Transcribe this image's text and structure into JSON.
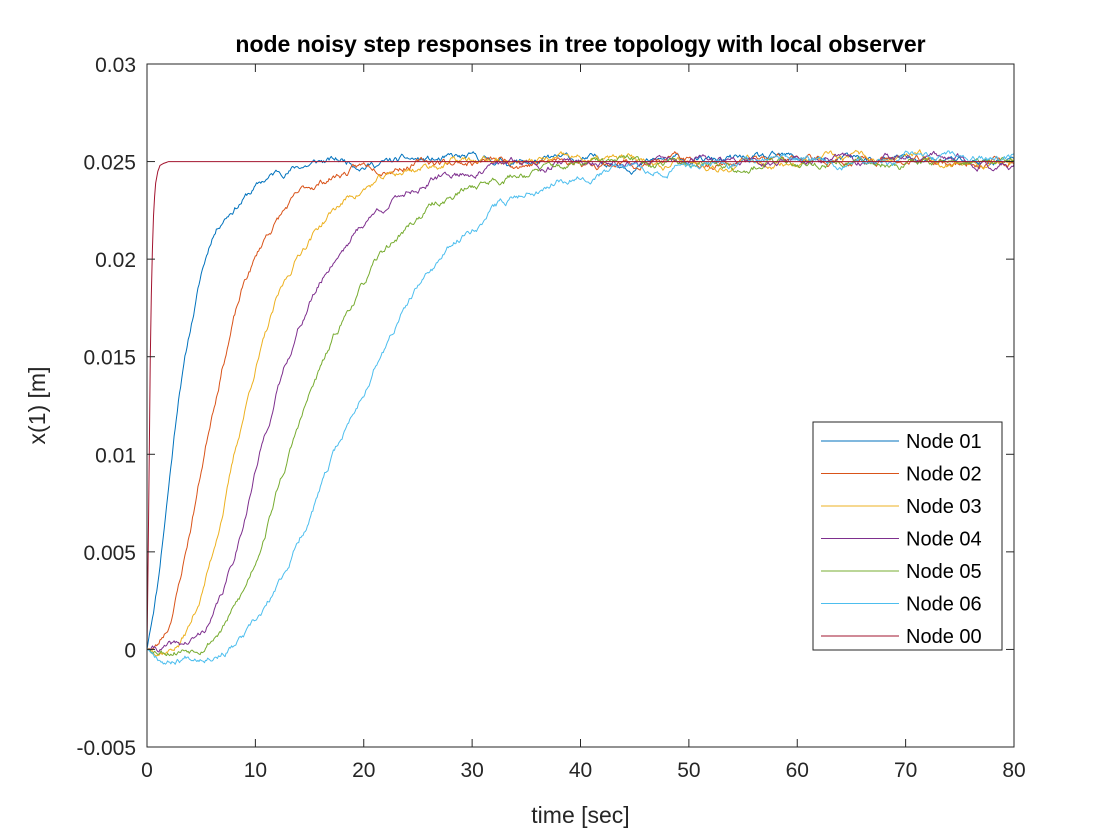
{
  "chart_data": {
    "type": "line",
    "title": "node noisy step responses in tree topology with local observer",
    "xlabel": "time [sec]",
    "ylabel": "x(1) [m]",
    "xlim": [
      0,
      80
    ],
    "ylim": [
      -0.005,
      0.03
    ],
    "xticks": [
      0,
      10,
      20,
      30,
      40,
      50,
      60,
      70,
      80
    ],
    "xtick_labels": [
      "0",
      "10",
      "20",
      "30",
      "40",
      "50",
      "60",
      "70",
      "80"
    ],
    "yticks": [
      -0.005,
      0,
      0.005,
      0.01,
      0.015,
      0.02,
      0.025,
      0.03
    ],
    "ytick_labels": [
      "-0.005",
      "0",
      "0.005",
      "0.01",
      "0.015",
      "0.02",
      "0.025",
      "0.03"
    ],
    "grid": false,
    "legend_position": "right",
    "series": [
      {
        "name": "Node 01",
        "color": "#0072BD",
        "noise": 0.00036,
        "seed": 11,
        "x": [
          0,
          1,
          2,
          3,
          4,
          5,
          6,
          7,
          8,
          9,
          10,
          11,
          12,
          13,
          14,
          16,
          18,
          20,
          22,
          25,
          30,
          40,
          50,
          60,
          70,
          80
        ],
        "y": [
          0,
          0.0035,
          0.0085,
          0.0135,
          0.0165,
          0.0192,
          0.0212,
          0.0222,
          0.0228,
          0.0233,
          0.0237,
          0.0241,
          0.0244,
          0.0246,
          0.0248,
          0.025,
          0.025,
          0.025,
          0.025,
          0.025,
          0.025,
          0.025,
          0.025,
          0.025,
          0.025,
          0.025
        ]
      },
      {
        "name": "Node 02",
        "color": "#D95319",
        "noise": 0.00036,
        "seed": 23,
        "x": [
          0,
          1,
          2,
          3,
          4,
          5,
          6,
          7,
          8,
          9,
          10,
          11,
          12,
          13,
          14,
          15,
          16,
          17,
          18,
          20,
          22,
          24,
          27,
          30,
          40,
          50,
          60,
          70,
          80
        ],
        "y": [
          0,
          0.0002,
          0.0012,
          0.0035,
          0.0062,
          0.0092,
          0.0122,
          0.0148,
          0.017,
          0.0188,
          0.02,
          0.0212,
          0.022,
          0.0227,
          0.0232,
          0.0236,
          0.0239,
          0.0242,
          0.0244,
          0.0247,
          0.0249,
          0.025,
          0.025,
          0.025,
          0.025,
          0.025,
          0.025,
          0.025,
          0.025
        ]
      },
      {
        "name": "Node 03",
        "color": "#EDB120",
        "noise": 0.00036,
        "seed": 37,
        "x": [
          0,
          2,
          3,
          4,
          5,
          6,
          7,
          8,
          9,
          10,
          11,
          12,
          13,
          14,
          15,
          16,
          17,
          18,
          19,
          20,
          21,
          22,
          24,
          26,
          28,
          30,
          40,
          50,
          60,
          70,
          80
        ],
        "y": [
          0,
          0.0001,
          0.0004,
          0.0013,
          0.0028,
          0.0048,
          0.0072,
          0.0098,
          0.0122,
          0.0145,
          0.0162,
          0.0178,
          0.019,
          0.0202,
          0.0211,
          0.0218,
          0.0224,
          0.0229,
          0.0233,
          0.0236,
          0.0239,
          0.0241,
          0.0245,
          0.0248,
          0.025,
          0.025,
          0.025,
          0.025,
          0.025,
          0.025,
          0.025
        ]
      },
      {
        "name": "Node 04",
        "color": "#7E2F8E",
        "noise": 0.00036,
        "seed": 41,
        "x": [
          0,
          3,
          4,
          5,
          6,
          7,
          8,
          9,
          10,
          11,
          12,
          13,
          14,
          15,
          16,
          17,
          18,
          19,
          20,
          21,
          22,
          23,
          24,
          26,
          28,
          30,
          32,
          35,
          40,
          50,
          60,
          70,
          80
        ],
        "y": [
          0,
          0.0001,
          0.0003,
          0.0007,
          0.0015,
          0.0028,
          0.0045,
          0.0068,
          0.0092,
          0.0112,
          0.0132,
          0.015,
          0.0165,
          0.0178,
          0.0188,
          0.0198,
          0.0206,
          0.0213,
          0.0219,
          0.0224,
          0.0228,
          0.0231,
          0.0235,
          0.024,
          0.0243,
          0.0245,
          0.0247,
          0.0249,
          0.025,
          0.025,
          0.025,
          0.025,
          0.025
        ]
      },
      {
        "name": "Node 05",
        "color": "#77AC30",
        "noise": 0.00036,
        "seed": 53,
        "x": [
          0,
          4,
          5,
          6,
          7,
          8,
          9,
          10,
          11,
          12,
          13,
          14,
          15,
          16,
          17,
          18,
          19,
          20,
          21,
          22,
          23,
          24,
          25,
          26,
          28,
          30,
          32,
          35,
          40,
          50,
          60,
          70,
          80
        ],
        "y": [
          0,
          0.0002,
          0.0004,
          0.0008,
          0.0013,
          0.0021,
          0.003,
          0.0045,
          0.0063,
          0.0082,
          0.0098,
          0.0115,
          0.013,
          0.0143,
          0.0155,
          0.0167,
          0.0178,
          0.0187,
          0.0196,
          0.0204,
          0.021,
          0.0216,
          0.0221,
          0.0226,
          0.0232,
          0.0237,
          0.0241,
          0.0245,
          0.0248,
          0.025,
          0.025,
          0.025,
          0.025
        ]
      },
      {
        "name": "Node 06",
        "color": "#4DBEEE",
        "noise": 0.00036,
        "seed": 67,
        "x": [
          0,
          2,
          5,
          7,
          8,
          9,
          10,
          11,
          12,
          13,
          14,
          15,
          16,
          17,
          18,
          19,
          20,
          21,
          22,
          23,
          24,
          25,
          26,
          27,
          28,
          30,
          32,
          35,
          38,
          40,
          45,
          50,
          60,
          70,
          80
        ],
        "y": [
          0,
          -0.0005,
          -0.0001,
          0.0001,
          0.0003,
          0.0007,
          0.0012,
          0.002,
          0.003,
          0.0042,
          0.0055,
          0.0068,
          0.0082,
          0.0095,
          0.0108,
          0.012,
          0.0132,
          0.0145,
          0.0155,
          0.0166,
          0.0176,
          0.0184,
          0.0192,
          0.0199,
          0.0205,
          0.0216,
          0.0226,
          0.0235,
          0.0242,
          0.0245,
          0.0247,
          0.0249,
          0.025,
          0.025,
          0.025
        ]
      },
      {
        "name": "Node 00",
        "color": "#A2142F",
        "noise": 0,
        "seed": 1,
        "x": [
          0,
          0.1,
          0.2,
          0.3,
          0.4,
          0.5,
          0.6,
          0.7,
          0.8,
          1.0,
          1.2,
          1.5,
          2,
          3,
          80
        ],
        "y": [
          0,
          0.0045,
          0.0095,
          0.0148,
          0.0182,
          0.0205,
          0.0222,
          0.0232,
          0.0239,
          0.0245,
          0.0248,
          0.0249,
          0.025,
          0.025,
          0.025
        ]
      }
    ]
  }
}
